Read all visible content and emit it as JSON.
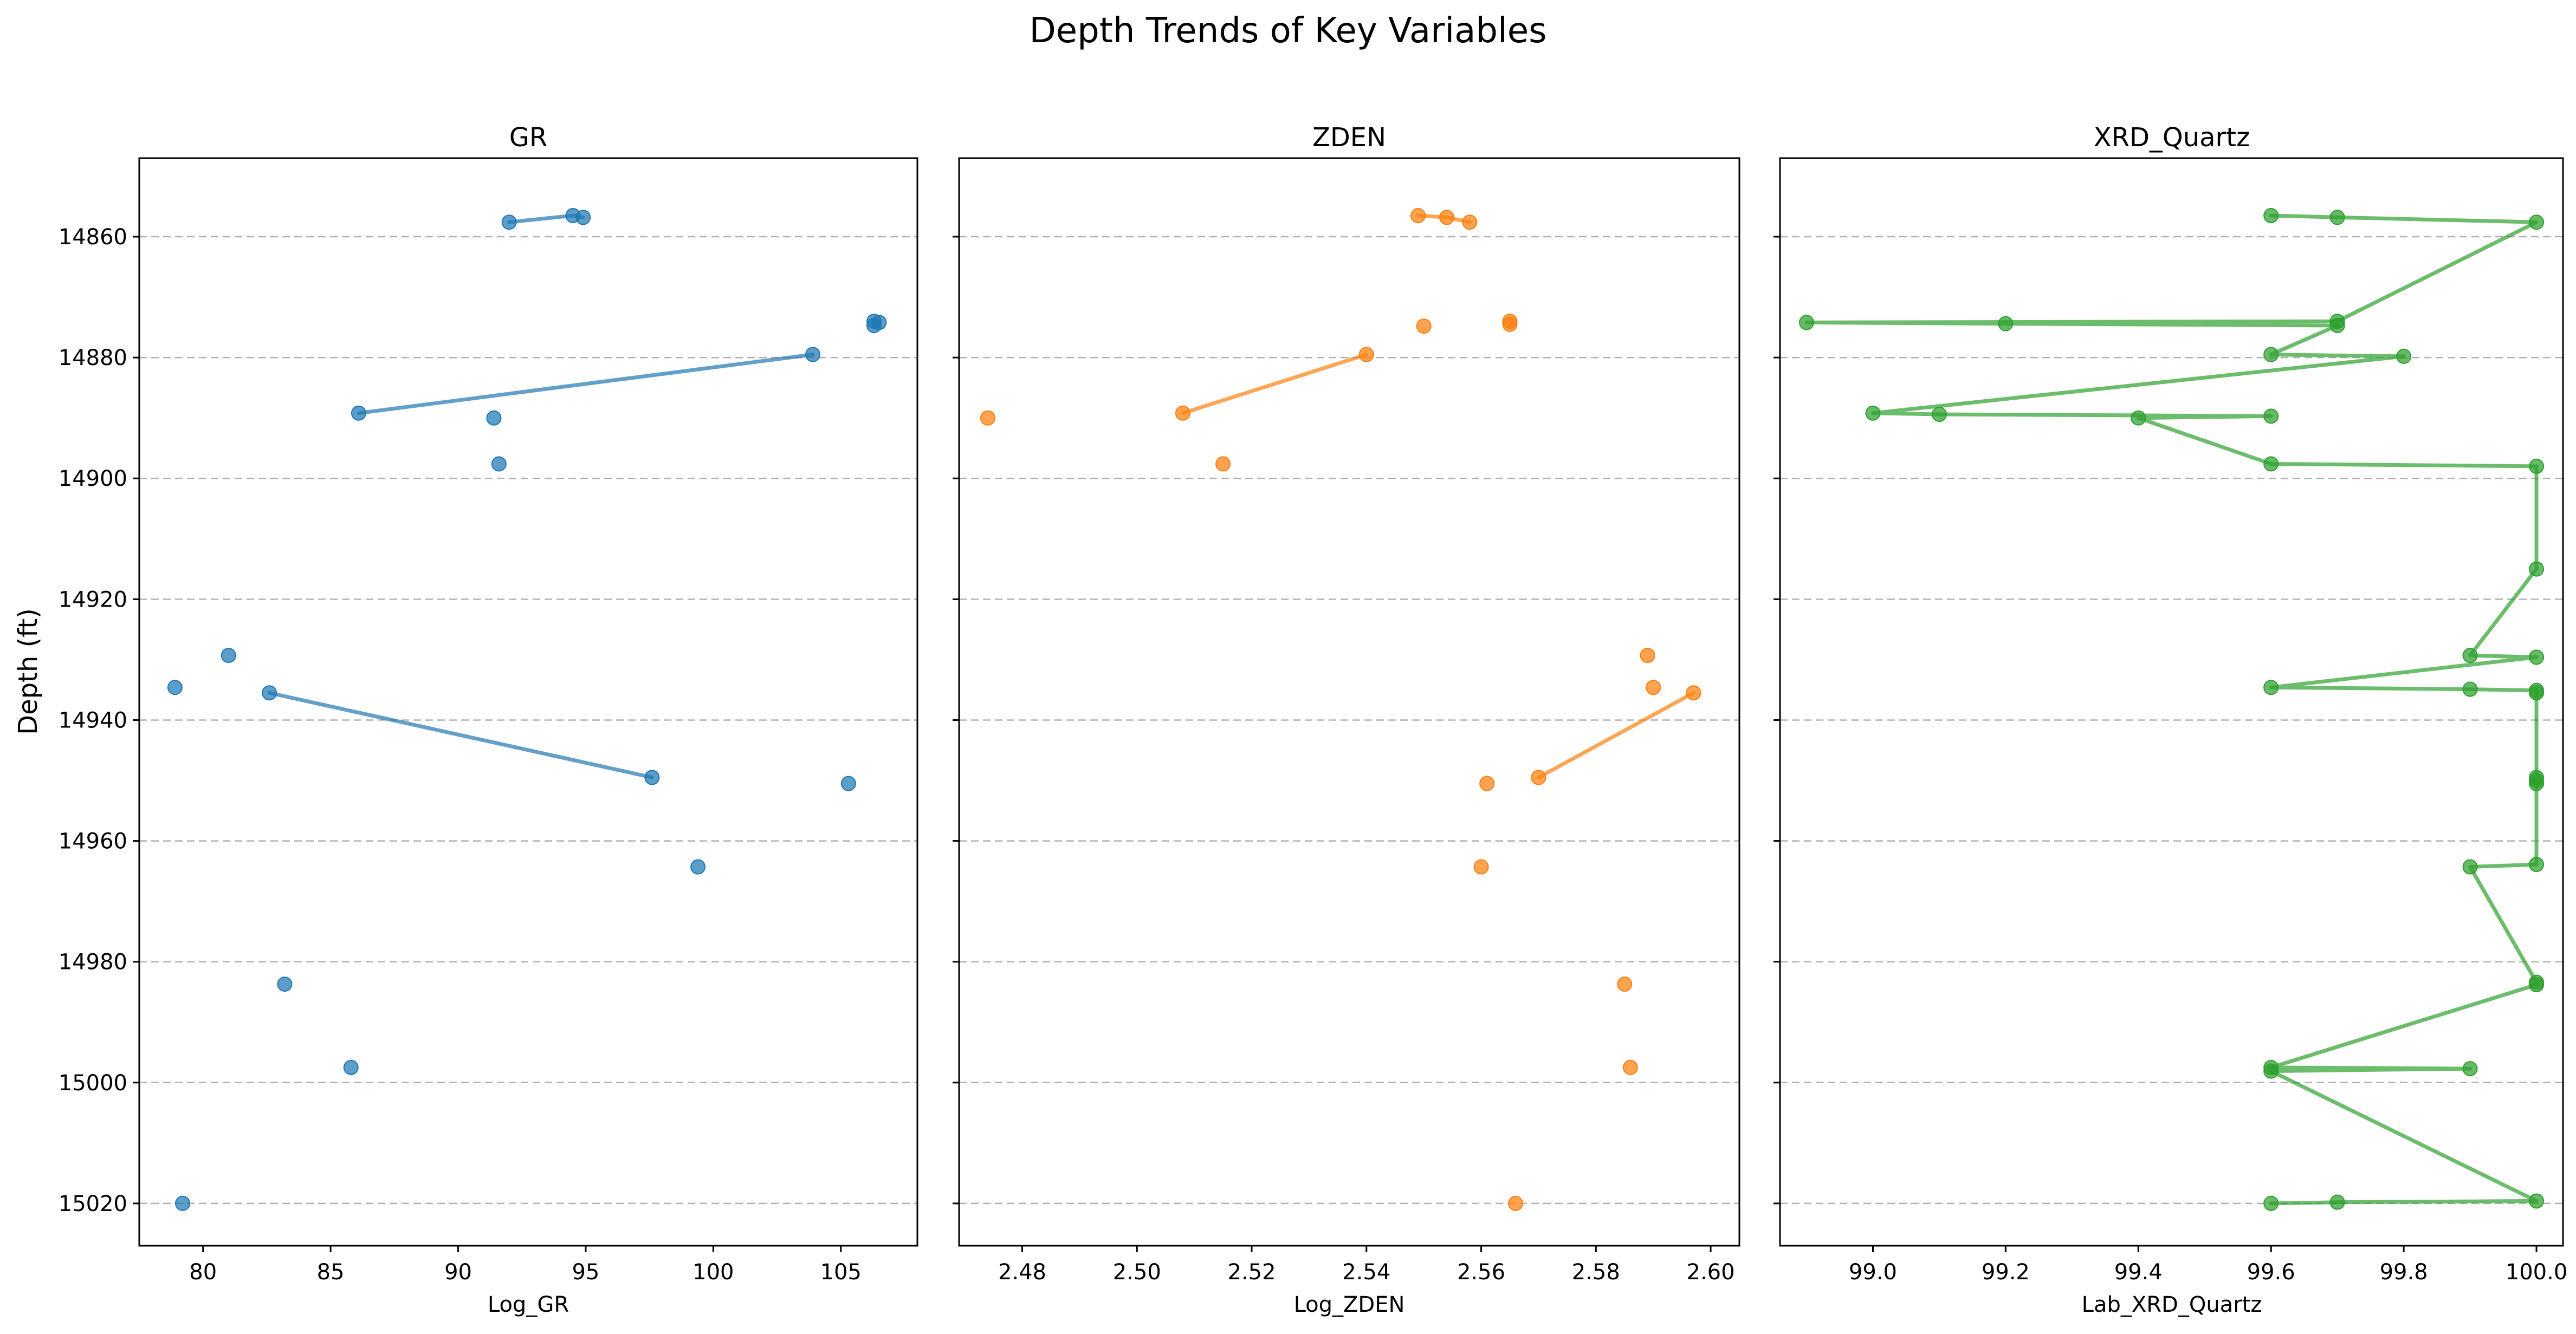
{
  "figure": {
    "title": "Depth Trends of Key Variables",
    "ylabel": "Depth (ft)"
  },
  "chart_data": [
    {
      "type": "scatter",
      "title": "GR",
      "xlabel": "Log_GR",
      "ylabel": "Depth (ft)",
      "y_inverted": true,
      "color": "#1f77b4",
      "xlim": [
        77.5,
        108
      ],
      "ylim": [
        14847,
        15027
      ],
      "xticks": [
        80,
        85,
        90,
        95,
        100,
        105
      ],
      "yticks": [
        14860,
        14880,
        14900,
        14920,
        14940,
        14960,
        14980,
        15000,
        15020
      ],
      "grid": "y-dashed",
      "points": [
        {
          "x": 92.0,
          "y": 14857.6
        },
        {
          "x": 94.5,
          "y": 14856.5
        },
        {
          "x": 94.9,
          "y": 14856.8
        },
        {
          "x": 106.3,
          "y": 14874.0
        },
        {
          "x": 106.5,
          "y": 14874.2
        },
        {
          "x": 106.3,
          "y": 14874.7
        },
        {
          "x": 103.9,
          "y": 14879.5
        },
        {
          "x": 86.1,
          "y": 14889.2
        },
        {
          "x": 91.4,
          "y": 14890.0
        },
        {
          "x": 91.6,
          "y": 14897.6
        },
        {
          "x": 81.0,
          "y": 14929.3
        },
        {
          "x": 78.9,
          "y": 14934.6
        },
        {
          "x": 82.6,
          "y": 14935.5
        },
        {
          "x": 97.6,
          "y": 14949.5
        },
        {
          "x": 105.3,
          "y": 14950.5
        },
        {
          "x": 99.4,
          "y": 14964.3
        },
        {
          "x": 83.2,
          "y": 14983.7
        },
        {
          "x": 85.8,
          "y": 14997.5
        },
        {
          "x": 79.2,
          "y": 15020.0
        }
      ],
      "lines": [
        [
          {
            "x": 92.0,
            "y": 14857.6
          },
          {
            "x": 94.5,
            "y": 14856.5
          },
          {
            "x": 94.9,
            "y": 14856.8
          }
        ],
        [
          {
            "x": 86.1,
            "y": 14889.2
          },
          {
            "x": 103.9,
            "y": 14879.5
          }
        ],
        [
          {
            "x": 82.6,
            "y": 14935.5
          },
          {
            "x": 97.6,
            "y": 14949.5
          }
        ]
      ]
    },
    {
      "type": "scatter",
      "title": "ZDEN",
      "xlabel": "Log_ZDEN",
      "ylabel": "",
      "y_inverted": true,
      "color": "#ff7f0e",
      "xlim": [
        2.469,
        2.605
      ],
      "ylim": [
        14847,
        15027
      ],
      "xticks": [
        2.48,
        2.5,
        2.52,
        2.54,
        2.56,
        2.58,
        2.6
      ],
      "xtick_labels": [
        "2.48",
        "2.50",
        "2.52",
        "2.54",
        "2.56",
        "2.58",
        "2.60"
      ],
      "yticks": [
        14860,
        14880,
        14900,
        14920,
        14940,
        14960,
        14980,
        15000,
        15020
      ],
      "grid": "y-dashed",
      "points": [
        {
          "x": 2.549,
          "y": 14856.5
        },
        {
          "x": 2.554,
          "y": 14856.8
        },
        {
          "x": 2.558,
          "y": 14857.6
        },
        {
          "x": 2.565,
          "y": 14874.0
        },
        {
          "x": 2.565,
          "y": 14874.5
        },
        {
          "x": 2.55,
          "y": 14874.8
        },
        {
          "x": 2.54,
          "y": 14879.5
        },
        {
          "x": 2.508,
          "y": 14889.2
        },
        {
          "x": 2.474,
          "y": 14890.0
        },
        {
          "x": 2.515,
          "y": 14897.6
        },
        {
          "x": 2.589,
          "y": 14929.3
        },
        {
          "x": 2.59,
          "y": 14934.6
        },
        {
          "x": 2.597,
          "y": 14935.5
        },
        {
          "x": 2.57,
          "y": 14949.5
        },
        {
          "x": 2.561,
          "y": 14950.5
        },
        {
          "x": 2.56,
          "y": 14964.3
        },
        {
          "x": 2.585,
          "y": 14983.7
        },
        {
          "x": 2.586,
          "y": 14997.5
        },
        {
          "x": 2.566,
          "y": 15020.0
        }
      ],
      "lines": [
        [
          {
            "x": 2.549,
            "y": 14856.5
          },
          {
            "x": 2.554,
            "y": 14856.8
          },
          {
            "x": 2.558,
            "y": 14857.6
          }
        ],
        [
          {
            "x": 2.508,
            "y": 14889.2
          },
          {
            "x": 2.54,
            "y": 14879.5
          }
        ],
        [
          {
            "x": 2.57,
            "y": 14949.5
          },
          {
            "x": 2.597,
            "y": 14935.5
          }
        ]
      ]
    },
    {
      "type": "line",
      "title": "XRD_Quartz",
      "xlabel": "Lab_XRD_Quartz",
      "ylabel": "",
      "y_inverted": true,
      "color": "#2ca02c",
      "xlim": [
        98.86,
        100.04
      ],
      "ylim": [
        14847,
        15027
      ],
      "xticks": [
        99.0,
        99.2,
        99.4,
        99.6,
        99.8,
        100.0
      ],
      "xtick_labels": [
        "99.0",
        "99.2",
        "99.4",
        "99.6",
        "99.8",
        "100.0"
      ],
      "yticks": [
        14860,
        14880,
        14900,
        14920,
        14940,
        14960,
        14980,
        15000,
        15020
      ],
      "grid": "y-dashed",
      "points": [
        {
          "x": 99.6,
          "y": 14856.5
        },
        {
          "x": 99.7,
          "y": 14856.8
        },
        {
          "x": 100.0,
          "y": 14857.6
        },
        {
          "x": 99.7,
          "y": 14874.0
        },
        {
          "x": 98.9,
          "y": 14874.2
        },
        {
          "x": 99.2,
          "y": 14874.4
        },
        {
          "x": 99.7,
          "y": 14874.7
        },
        {
          "x": 99.6,
          "y": 14879.5
        },
        {
          "x": 99.8,
          "y": 14879.8
        },
        {
          "x": 99.0,
          "y": 14889.2
        },
        {
          "x": 99.1,
          "y": 14889.4
        },
        {
          "x": 99.6,
          "y": 14889.7
        },
        {
          "x": 99.4,
          "y": 14890.0
        },
        {
          "x": 99.6,
          "y": 14897.6
        },
        {
          "x": 100.0,
          "y": 14898.0
        },
        {
          "x": 100.0,
          "y": 14915.0
        },
        {
          "x": 99.9,
          "y": 14929.3
        },
        {
          "x": 100.0,
          "y": 14929.6
        },
        {
          "x": 99.6,
          "y": 14934.6
        },
        {
          "x": 99.9,
          "y": 14934.9
        },
        {
          "x": 100.0,
          "y": 14935.1
        },
        {
          "x": 100.0,
          "y": 14935.5
        },
        {
          "x": 100.0,
          "y": 14949.5
        },
        {
          "x": 100.0,
          "y": 14950.0
        },
        {
          "x": 100.0,
          "y": 14950.5
        },
        {
          "x": 100.0,
          "y": 14963.9
        },
        {
          "x": 99.9,
          "y": 14964.3
        },
        {
          "x": 100.0,
          "y": 14983.4
        },
        {
          "x": 100.0,
          "y": 14983.8
        },
        {
          "x": 99.6,
          "y": 14997.5
        },
        {
          "x": 99.9,
          "y": 14997.7
        },
        {
          "x": 99.6,
          "y": 14998.1
        },
        {
          "x": 100.0,
          "y": 15019.6
        },
        {
          "x": 99.7,
          "y": 15019.8
        },
        {
          "x": 99.6,
          "y": 15020.0
        }
      ],
      "lines": [
        [
          {
            "x": 99.6,
            "y": 14856.5
          },
          {
            "x": 99.7,
            "y": 14856.8
          },
          {
            "x": 100.0,
            "y": 14857.6
          },
          {
            "x": 99.7,
            "y": 14874.0
          },
          {
            "x": 98.9,
            "y": 14874.2
          },
          {
            "x": 99.2,
            "y": 14874.4
          },
          {
            "x": 99.7,
            "y": 14874.7
          },
          {
            "x": 99.6,
            "y": 14879.5
          },
          {
            "x": 99.8,
            "y": 14879.8
          },
          {
            "x": 99.0,
            "y": 14889.2
          },
          {
            "x": 99.1,
            "y": 14889.4
          },
          {
            "x": 99.6,
            "y": 14889.7
          },
          {
            "x": 99.4,
            "y": 14890.0
          },
          {
            "x": 99.6,
            "y": 14897.6
          },
          {
            "x": 100.0,
            "y": 14898.0
          },
          {
            "x": 100.0,
            "y": 14915.0
          },
          {
            "x": 99.9,
            "y": 14929.3
          },
          {
            "x": 100.0,
            "y": 14929.6
          },
          {
            "x": 99.6,
            "y": 14934.6
          },
          {
            "x": 99.9,
            "y": 14934.9
          },
          {
            "x": 100.0,
            "y": 14935.1
          },
          {
            "x": 100.0,
            "y": 14935.5
          },
          {
            "x": 100.0,
            "y": 14949.5
          },
          {
            "x": 100.0,
            "y": 14950.0
          },
          {
            "x": 100.0,
            "y": 14950.5
          },
          {
            "x": 100.0,
            "y": 14963.9
          },
          {
            "x": 99.9,
            "y": 14964.3
          },
          {
            "x": 100.0,
            "y": 14983.4
          },
          {
            "x": 100.0,
            "y": 14983.8
          },
          {
            "x": 99.6,
            "y": 14997.5
          },
          {
            "x": 99.9,
            "y": 14997.7
          },
          {
            "x": 99.6,
            "y": 14998.1
          },
          {
            "x": 100.0,
            "y": 15019.6
          },
          {
            "x": 99.7,
            "y": 15019.8
          },
          {
            "x": 99.6,
            "y": 15020.0
          }
        ]
      ]
    }
  ]
}
